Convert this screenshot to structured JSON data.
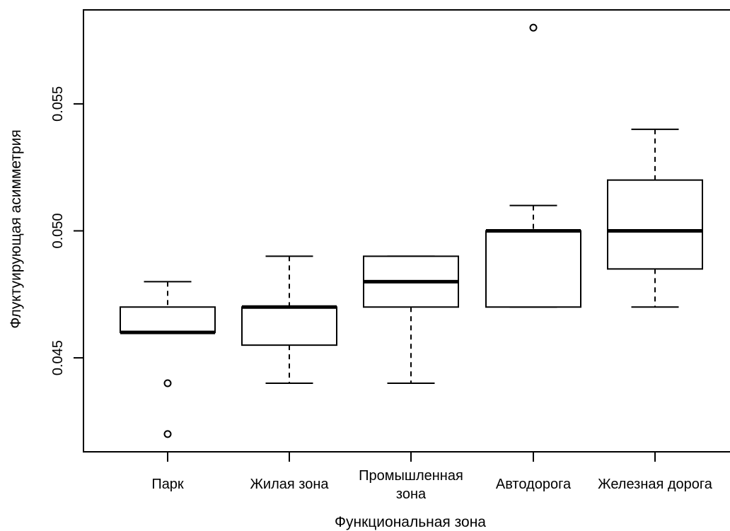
{
  "chart_data": {
    "type": "boxplot",
    "title": "",
    "xlabel": "Функциональная зона",
    "ylabel": "Флуктуирующая асимметрия",
    "ylim": [
      0.0413,
      0.0587
    ],
    "yticks": [
      {
        "value": 0.045,
        "label": "0.045"
      },
      {
        "value": 0.05,
        "label": "0.050"
      },
      {
        "value": 0.055,
        "label": "0.055"
      }
    ],
    "categories": [
      {
        "label_lines": [
          "Парк"
        ],
        "whisker_low": 0.046,
        "q1": 0.046,
        "median": 0.046,
        "q3": 0.047,
        "whisker_high": 0.048,
        "outliers": [
          0.044,
          0.042
        ]
      },
      {
        "label_lines": [
          "Жилая зона"
        ],
        "whisker_low": 0.044,
        "q1": 0.0455,
        "median": 0.047,
        "q3": 0.047,
        "whisker_high": 0.049,
        "outliers": []
      },
      {
        "label_lines": [
          "Промышленная",
          "зона"
        ],
        "whisker_low": 0.044,
        "q1": 0.047,
        "median": 0.048,
        "q3": 0.049,
        "whisker_high": 0.049,
        "outliers": []
      },
      {
        "label_lines": [
          "Автодорога"
        ],
        "whisker_low": 0.047,
        "q1": 0.047,
        "median": 0.05,
        "q3": 0.05,
        "whisker_high": 0.051,
        "outliers": [
          0.058
        ]
      },
      {
        "label_lines": [
          "Железная дорога"
        ],
        "whisker_low": 0.047,
        "q1": 0.0485,
        "median": 0.05,
        "q3": 0.052,
        "whisker_high": 0.054,
        "outliers": []
      }
    ],
    "grid": false,
    "legend": "none"
  }
}
